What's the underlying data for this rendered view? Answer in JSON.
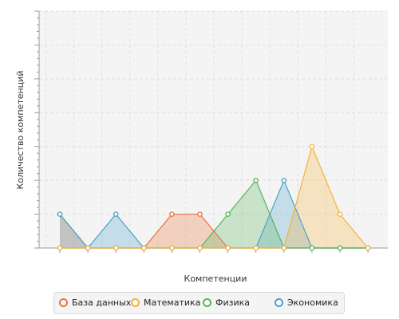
{
  "chart_data": {
    "type": "area",
    "xlabel": "Компетенции",
    "ylabel": "Количество компетенций",
    "x": [
      0,
      1,
      2,
      3,
      4,
      5,
      6,
      7,
      8,
      9,
      10,
      11
    ],
    "ylim": [
      0,
      7
    ],
    "grid": true,
    "legend_position": "bottom",
    "series": [
      {
        "name": "База данных",
        "color": "#e8743b",
        "values": [
          1,
          0,
          0,
          0,
          1,
          1,
          0,
          0,
          0,
          0,
          0,
          0
        ]
      },
      {
        "name": "Математика",
        "color": "#f4b33d",
        "values": [
          0,
          0,
          0,
          0,
          0,
          0,
          0,
          0,
          0,
          3,
          1,
          0
        ]
      },
      {
        "name": "Физика",
        "color": "#59b35c",
        "values": [
          0,
          0,
          0,
          0,
          0,
          0,
          1,
          2,
          0,
          0,
          0,
          0
        ]
      },
      {
        "name": "Экономика",
        "color": "#4aa3c8",
        "values": [
          1,
          0,
          1,
          0,
          0,
          0,
          0,
          0,
          2,
          0,
          0,
          0
        ]
      }
    ]
  }
}
